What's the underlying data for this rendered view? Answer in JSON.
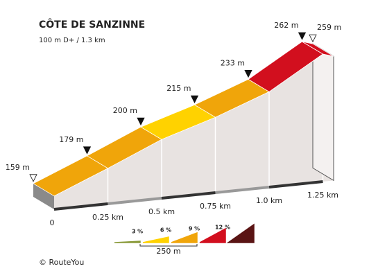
{
  "chart_data": {
    "type": "climb-profile",
    "title": "CÔTE DE SANZINNE",
    "subtitle": "100 m D+ / 1.3 km",
    "x": [
      0,
      0.25,
      0.5,
      0.75,
      1.0,
      1.25,
      1.3
    ],
    "elevation": [
      159,
      179,
      200,
      215,
      233,
      262,
      259
    ],
    "value_labels": [
      "159 m",
      "179 m",
      "200 m",
      "215 m",
      "233 m",
      "262 m",
      "259 m"
    ],
    "segment_colors": [
      "#f0a50a",
      "#f0a50a",
      "#ffd200",
      "#f0a50a",
      "#d20f1e",
      "#d20f1e"
    ],
    "xticks": [
      {
        "value": 0,
        "label": "0"
      },
      {
        "value": 0.25,
        "label": "0.25 km"
      },
      {
        "value": 0.5,
        "label": "0.5 km"
      },
      {
        "value": 0.75,
        "label": "0.75 km"
      },
      {
        "value": 1.0,
        "label": "1.0 km"
      },
      {
        "value": 1.25,
        "label": "1.25 km"
      }
    ],
    "legend": {
      "labels": [
        "3 %",
        "6 %",
        "9 %",
        "12 %"
      ],
      "colors": [
        "#8a9a3a",
        "#ffd200",
        "#f0a50a",
        "#d20f1e",
        "#5a1414"
      ],
      "scale_label": "250 m"
    },
    "copyright": "© RouteYou"
  }
}
